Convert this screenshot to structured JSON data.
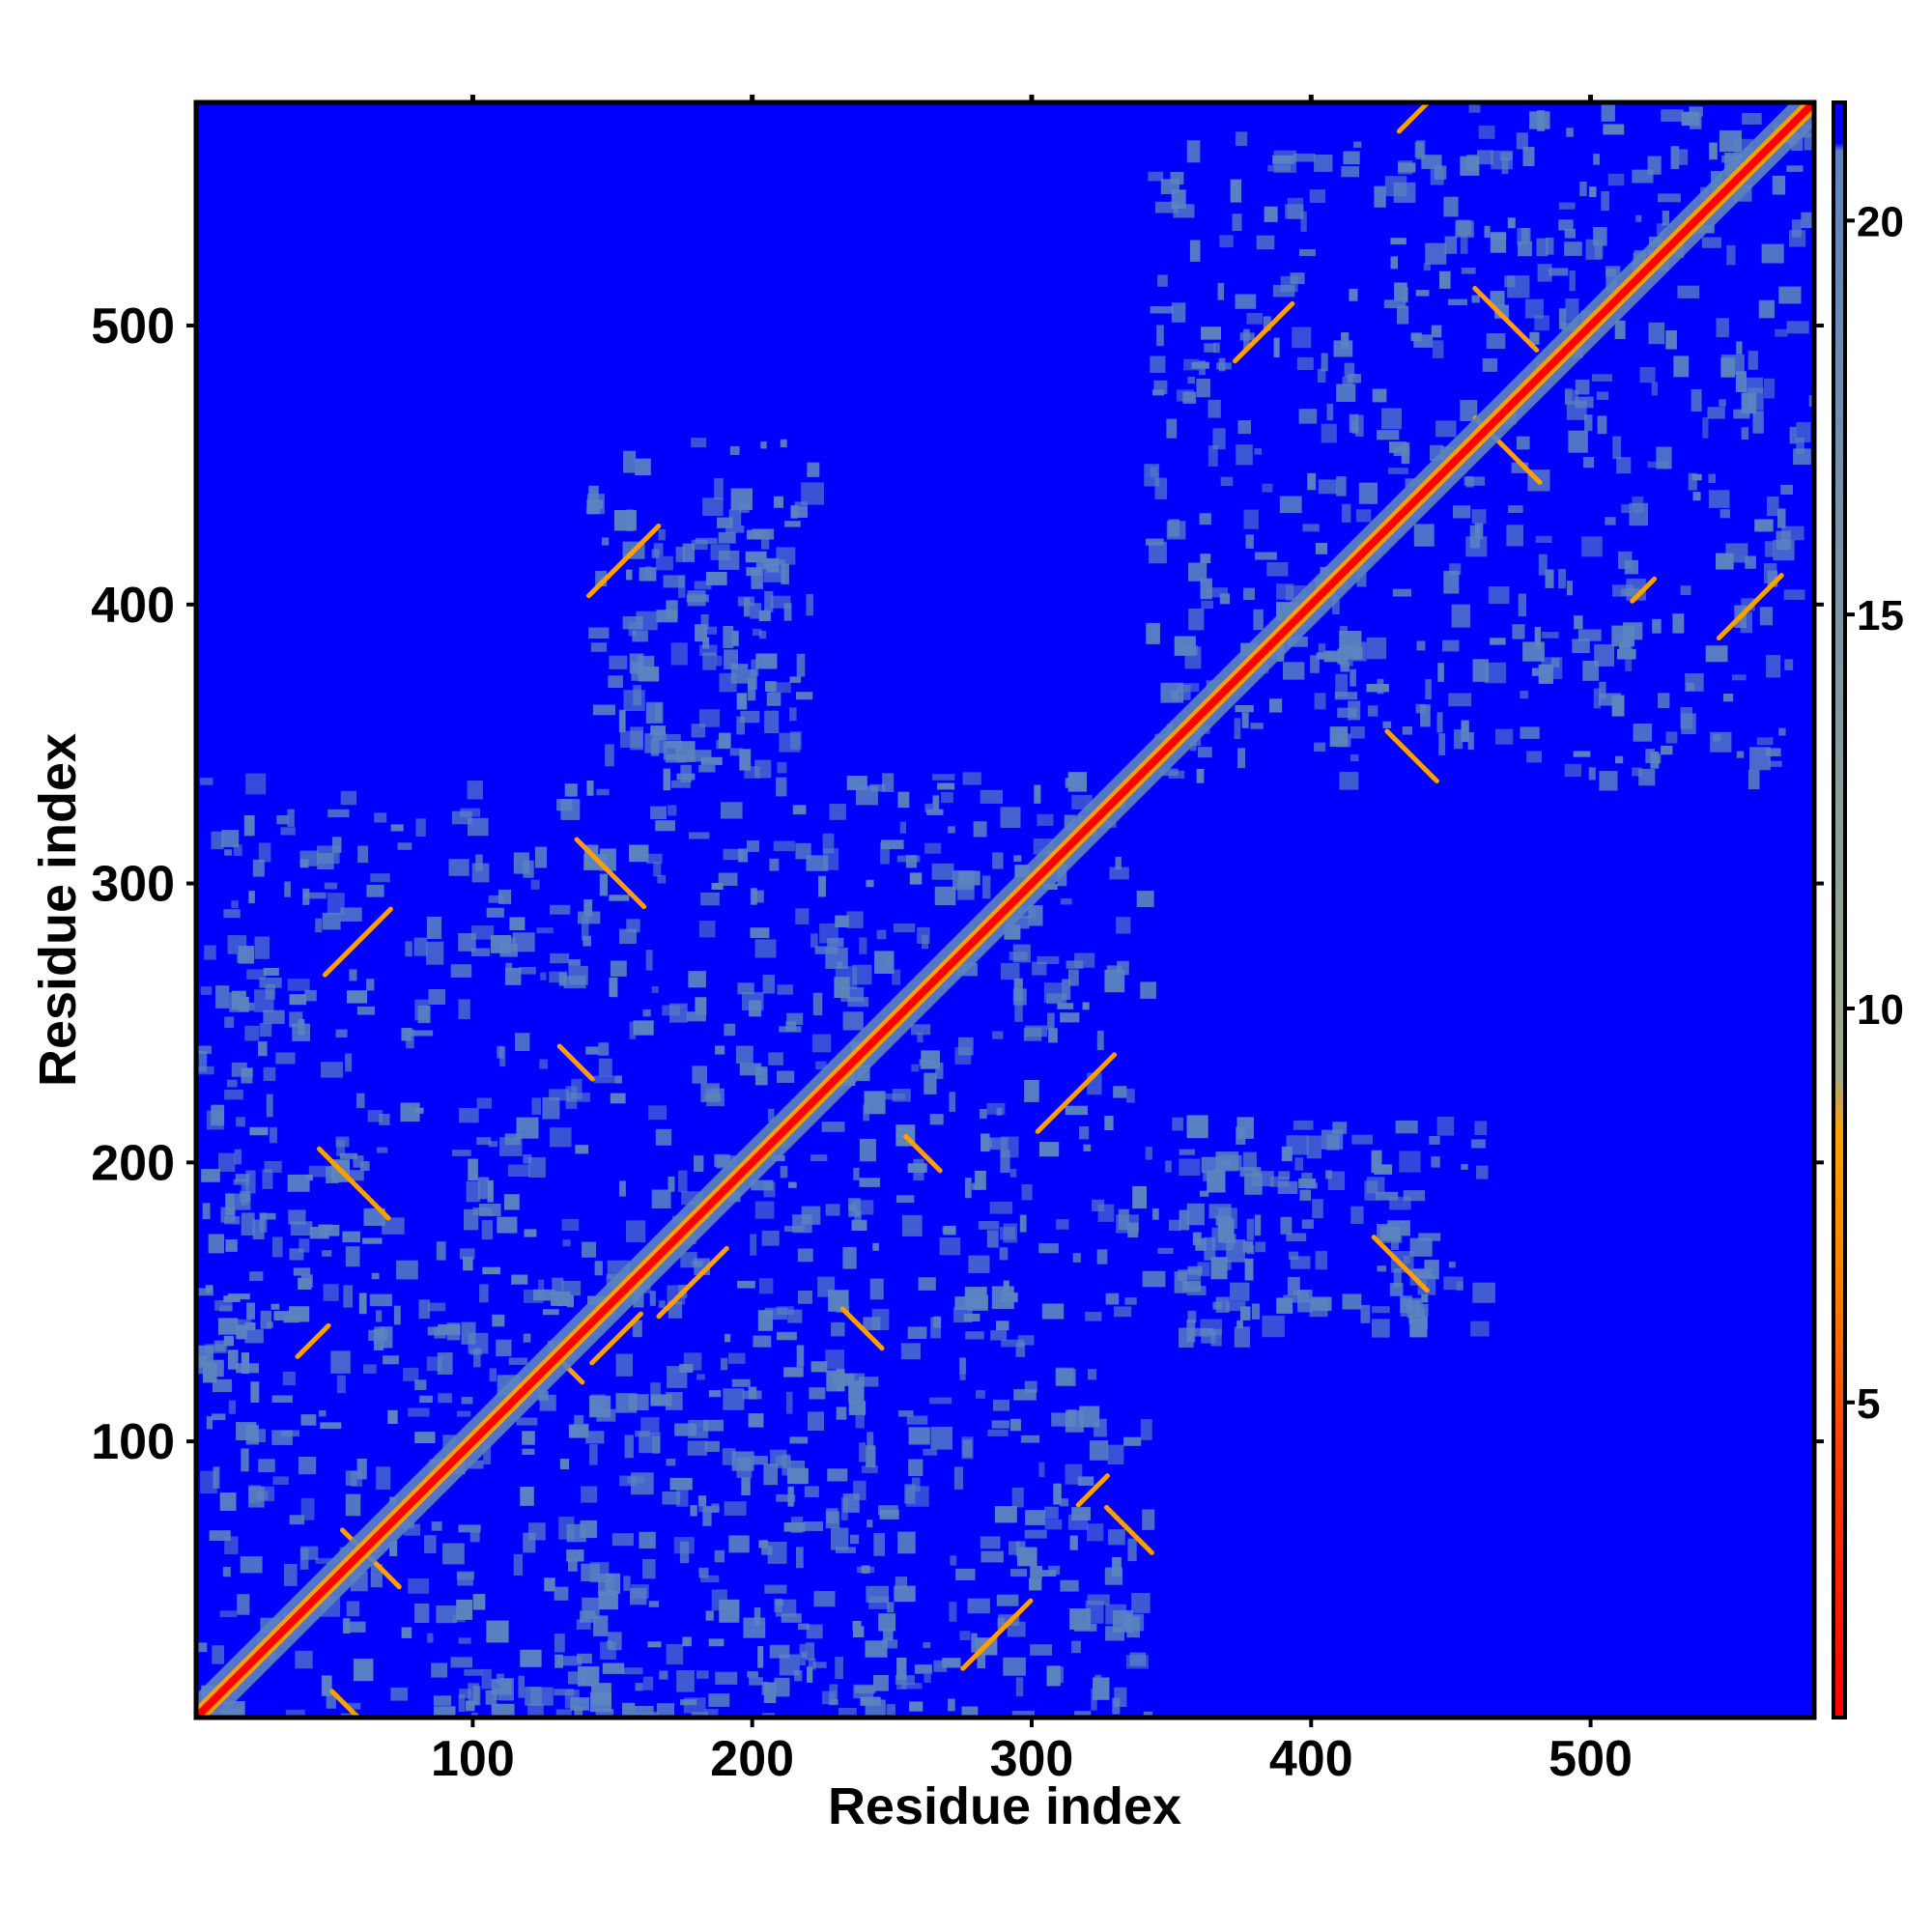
{
  "chart_data": {
    "type": "heatmap",
    "title": "",
    "xlabel": "Residue index",
    "ylabel": "Residue index",
    "xlim": [
      1,
      580
    ],
    "ylim": [
      1,
      580
    ],
    "x_ticks": [
      "100",
      "200",
      "300",
      "400",
      "500"
    ],
    "y_ticks": [
      "100",
      "200",
      "300",
      "400",
      "500"
    ],
    "colorbar": {
      "range": [
        1,
        21.5
      ],
      "ticks": [
        "5",
        "10",
        "15",
        "20"
      ],
      "colors": {
        "low": "#ff0000",
        "mid_low": "#ff6a00",
        "mid": "#ffa000",
        "mid_high": "#9aa88a",
        "high": "#5b84c0",
        "saturated": "#0000ff"
      }
    },
    "background_color": "#0000ff",
    "diagonal_color": "#ff0000",
    "contact_regions": [
      {
        "x": [
          1,
          340
        ],
        "y": [
          1,
          340
        ],
        "level": 16
      },
      {
        "x": [
          340,
          445
        ],
        "y": [
          340,
          445
        ],
        "level": 15
      },
      {
        "x": [
          445,
          580
        ],
        "y": [
          445,
          580
        ],
        "level": 15
      },
      {
        "x": [
          340,
          445
        ],
        "y": [
          445,
          570
        ],
        "level": 16.5
      },
      {
        "x": [
          445,
          570
        ],
        "y": [
          340,
          445
        ],
        "level": 16.5
      },
      {
        "x": [
          1,
          30
        ],
        "y": [
          90,
          270
        ],
        "level": 16
      },
      {
        "x": [
          90,
          270
        ],
        "y": [
          1,
          30
        ],
        "level": 16
      },
      {
        "x": [
          140,
          210
        ],
        "y": [
          350,
          440
        ],
        "level": 18
      },
      {
        "x": [
          350,
          440
        ],
        "y": [
          140,
          210
        ],
        "level": 18
      },
      {
        "x": [
          340,
          460
        ],
        "y": [
          140,
          220
        ],
        "level": 18.5
      },
      {
        "x": [
          140,
          220
        ],
        "y": [
          340,
          460
        ],
        "level": 18.5
      }
    ]
  }
}
